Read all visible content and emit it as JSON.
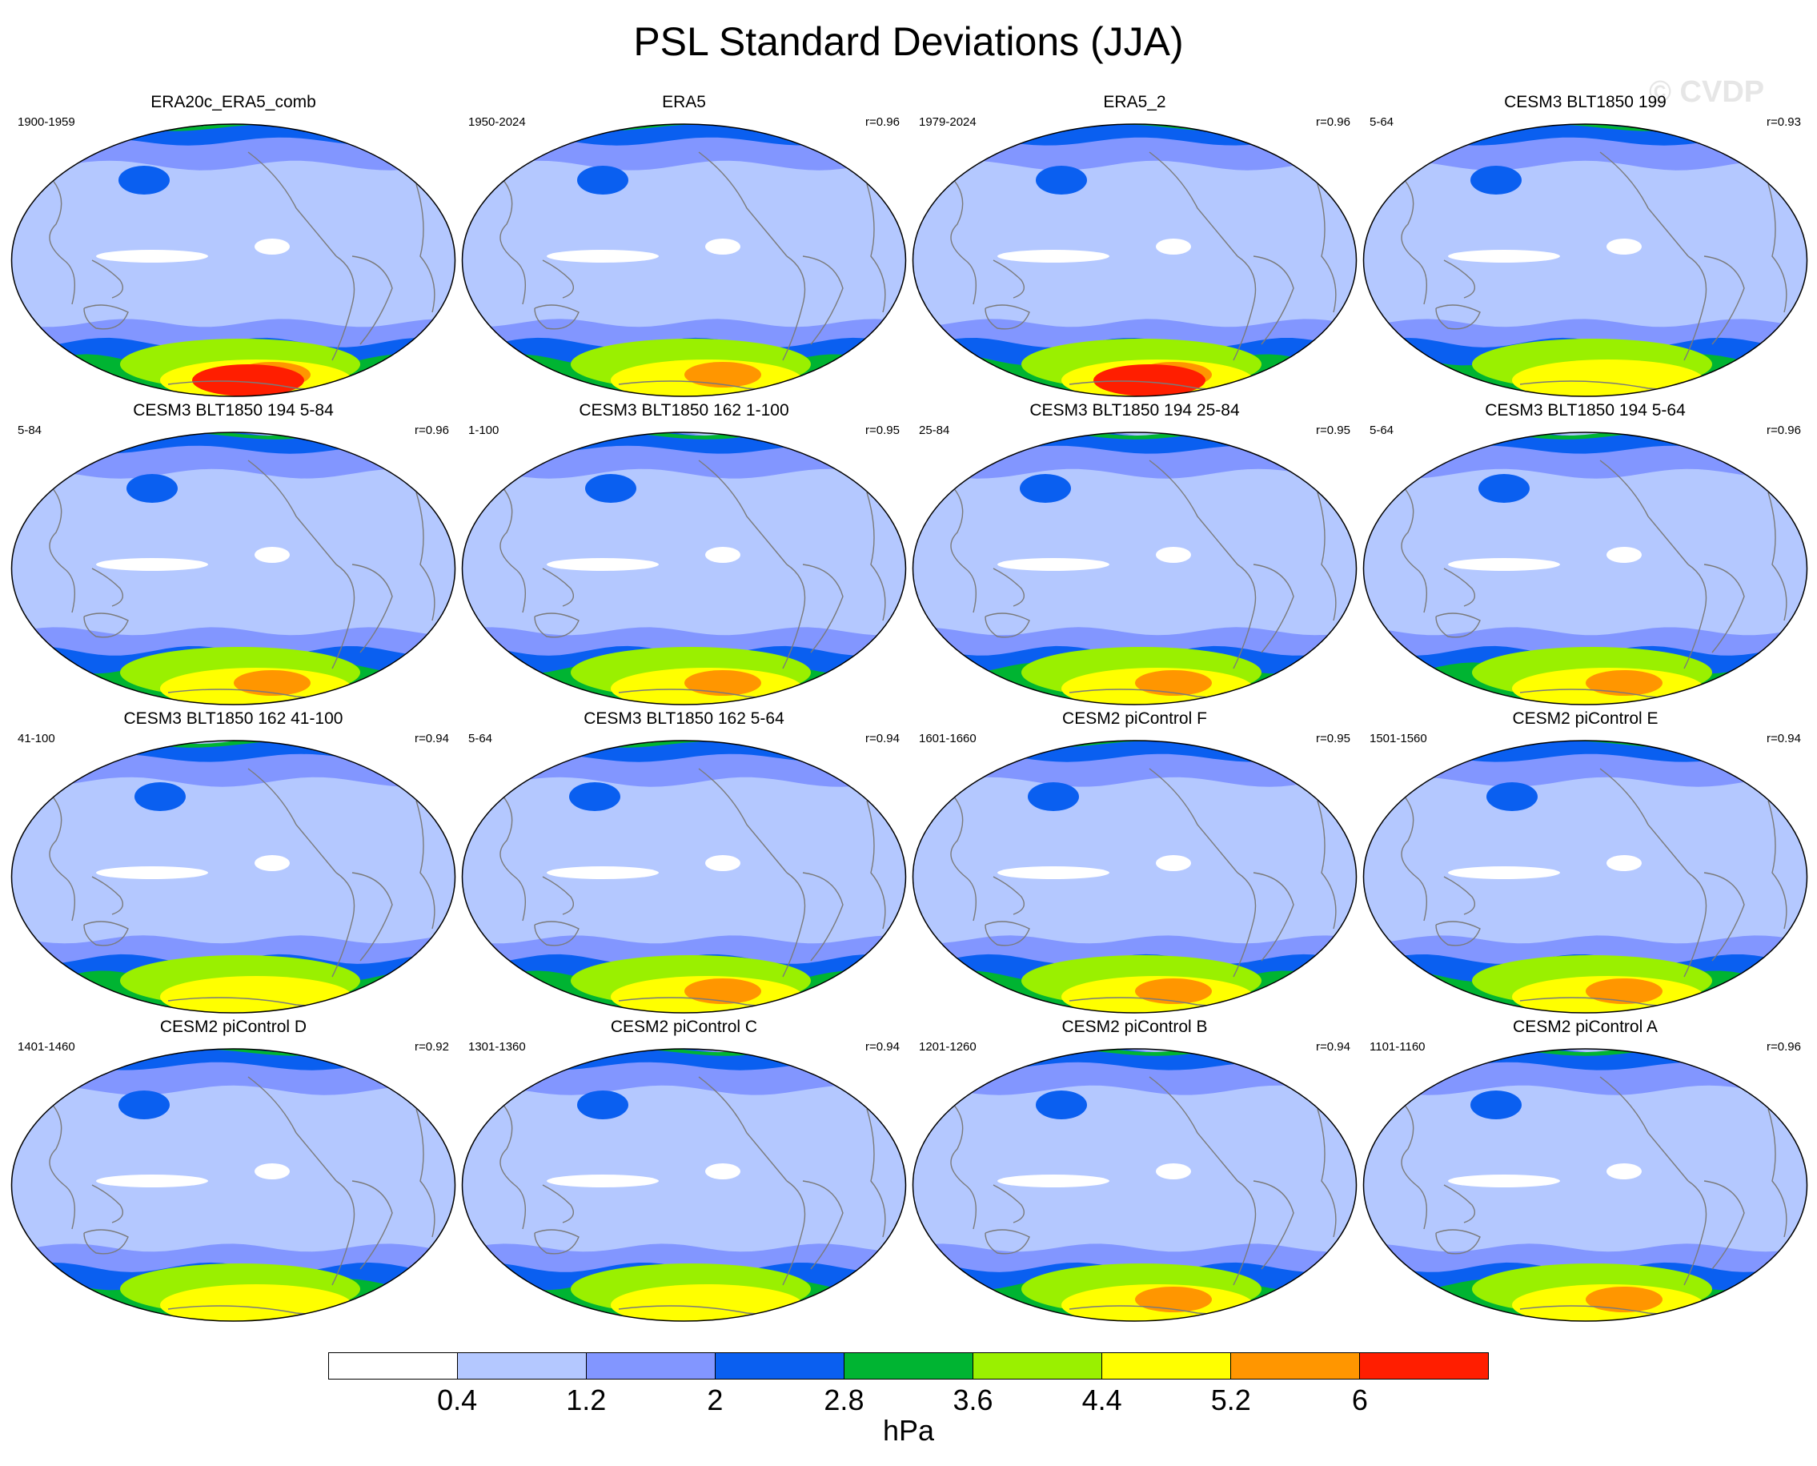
{
  "title": "PSL Standard Deviations (JJA)",
  "watermark": "© CVDP",
  "colors": {
    "levels": [
      "#ffffff",
      "#b4c8ff",
      "#8296ff",
      "#0a5ff0",
      "#00b432",
      "#9af000",
      "#ffff00",
      "#ff9600",
      "#ff1e00"
    ],
    "land_outline": "#7a7a7a",
    "map_border": "#000000"
  },
  "colorbar": {
    "labels": [
      "0.4",
      "1.2",
      "2",
      "2.8",
      "3.6",
      "4.4",
      "5.2",
      "6"
    ],
    "units": "hPa"
  },
  "panels": [
    {
      "title": "ERA20c_ERA5_comb",
      "years": "1900-1959",
      "r": "",
      "peak": 8
    },
    {
      "title": "ERA5",
      "years": "1950-2024",
      "r": "r=0.96",
      "peak": 7
    },
    {
      "title": "ERA5_2",
      "years": "1979-2024",
      "r": "r=0.96",
      "peak": 8
    },
    {
      "title": "CESM3 BLT1850 199",
      "years": "5-64",
      "r": "r=0.93",
      "peak": 6
    },
    {
      "title": "CESM3 BLT1850 194 5-84",
      "years": "5-84",
      "r": "r=0.96",
      "peak": 7
    },
    {
      "title": "CESM3 BLT1850 162 1-100",
      "years": "1-100",
      "r": "r=0.95",
      "peak": 7
    },
    {
      "title": "CESM3 BLT1850 194 25-84",
      "years": "25-84",
      "r": "r=0.95",
      "peak": 7
    },
    {
      "title": "CESM3 BLT1850 194 5-64",
      "years": "5-64",
      "r": "r=0.96",
      "peak": 7
    },
    {
      "title": "CESM3 BLT1850 162 41-100",
      "years": "41-100",
      "r": "r=0.94",
      "peak": 6
    },
    {
      "title": "CESM3 BLT1850 162 5-64",
      "years": "5-64",
      "r": "r=0.94",
      "peak": 7
    },
    {
      "title": "CESM2 piControl F",
      "years": "1601-1660",
      "r": "r=0.95",
      "peak": 7
    },
    {
      "title": "CESM2 piControl E",
      "years": "1501-1560",
      "r": "r=0.94",
      "peak": 7
    },
    {
      "title": "CESM2 piControl D",
      "years": "1401-1460",
      "r": "r=0.92",
      "peak": 6
    },
    {
      "title": "CESM2 piControl C",
      "years": "1301-1360",
      "r": "r=0.94",
      "peak": 6
    },
    {
      "title": "CESM2 piControl B",
      "years": "1201-1260",
      "r": "r=0.94",
      "peak": 7
    },
    {
      "title": "CESM2 piControl A",
      "years": "1101-1160",
      "r": "r=0.96",
      "peak": 7
    }
  ]
}
